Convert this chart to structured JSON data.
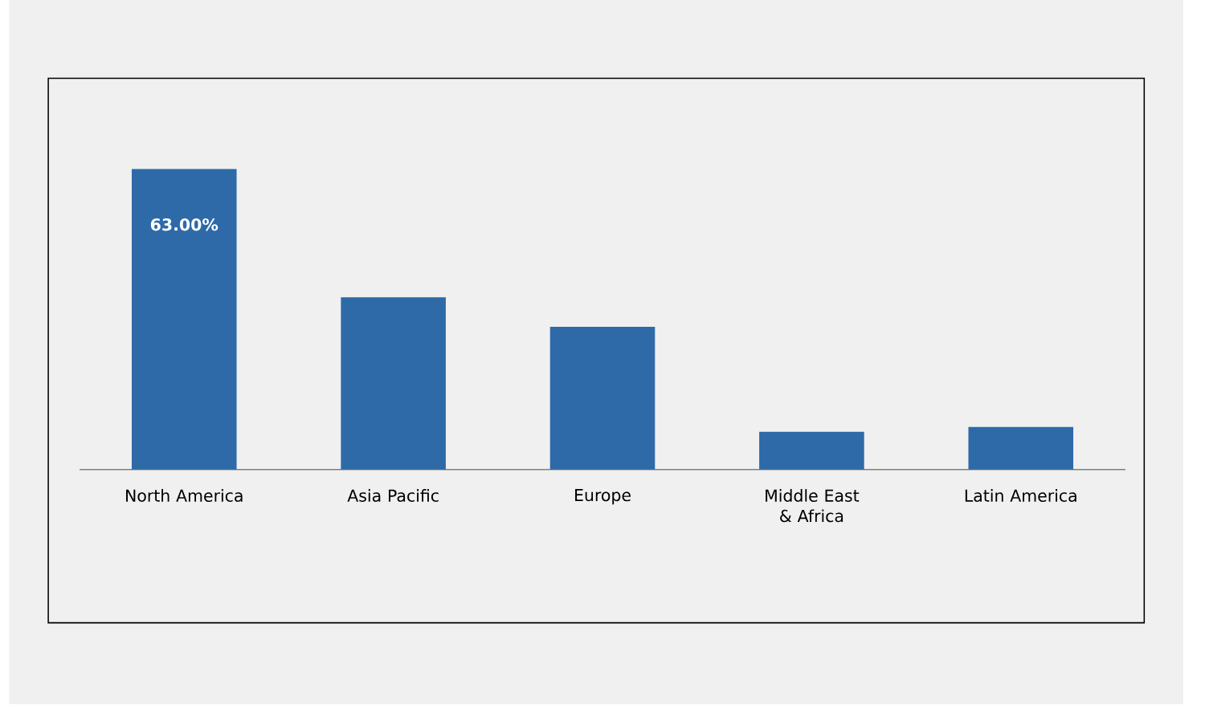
{
  "chart_data": {
    "type": "bar",
    "categories": [
      "North America",
      "Asia Pacific",
      "Europe",
      "Middle East & Africa",
      "Latin America"
    ],
    "values": [
      63,
      36.1,
      29.9,
      7.9,
      8.9
    ],
    "value_labels": [
      "63.00%",
      null,
      null,
      null,
      null
    ],
    "color": "#2e6aa8"
  }
}
